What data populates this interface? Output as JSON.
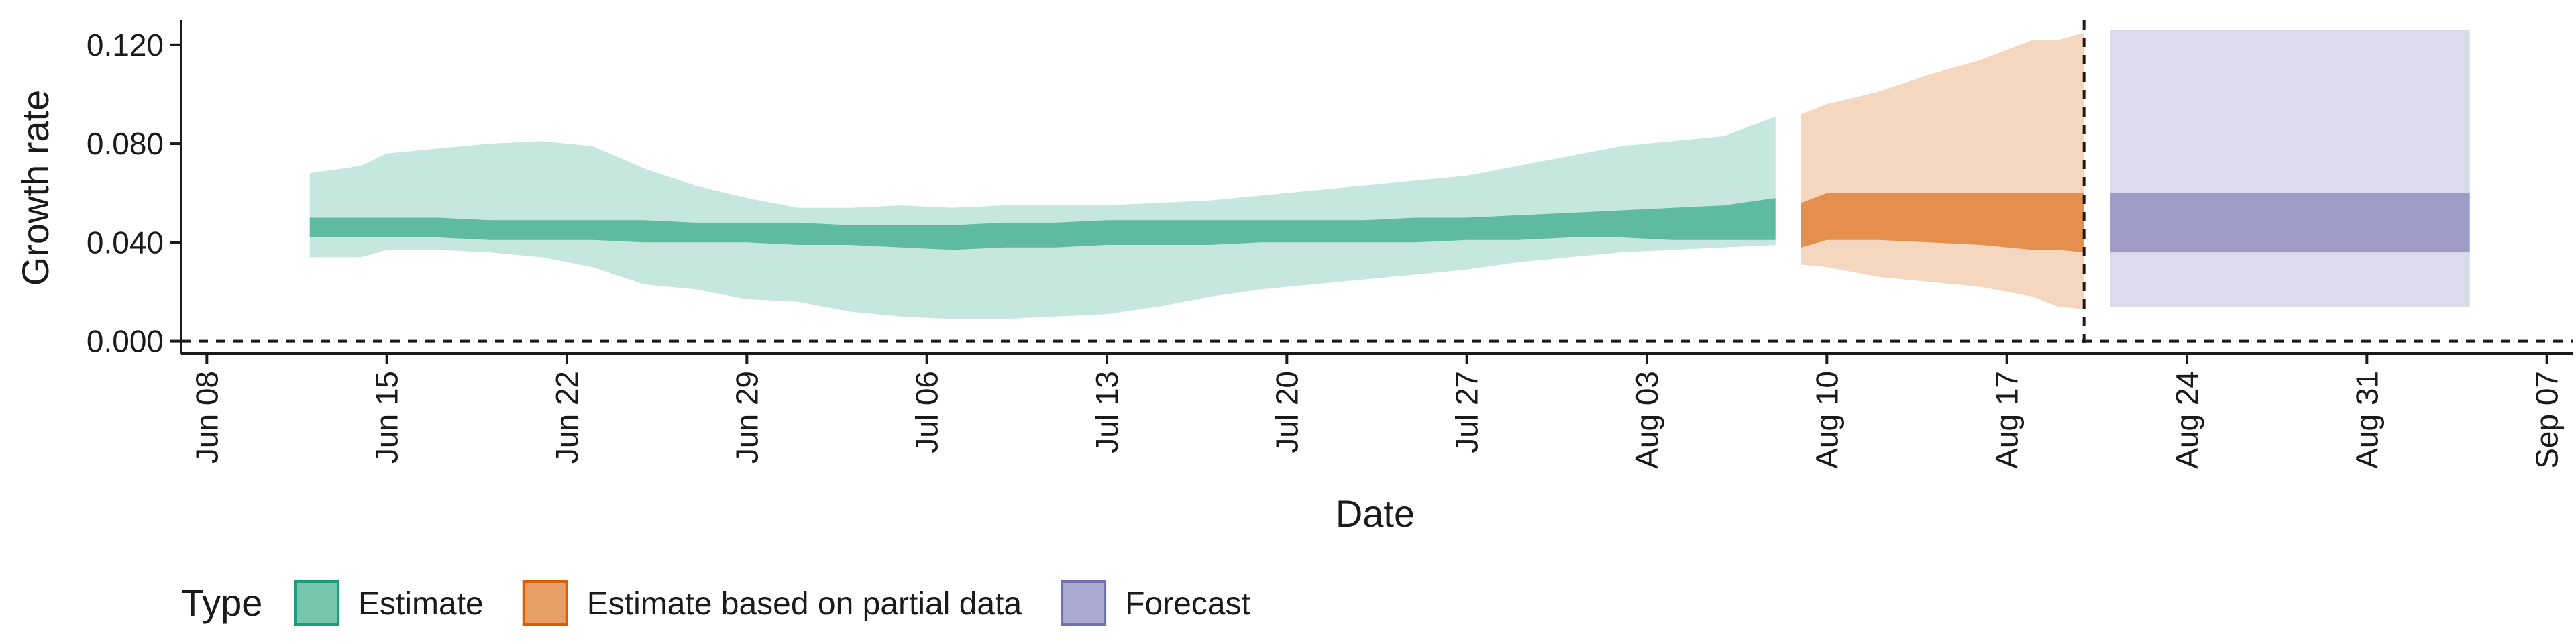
{
  "chart_data": {
    "type": "area",
    "title": "",
    "xlabel": "Date",
    "ylabel": "Growth rate",
    "x_type": "date",
    "xlim": [
      "2020-06-07",
      "2020-09-08"
    ],
    "ylim": [
      -0.005,
      0.13
    ],
    "x_ticks": [
      {
        "date": "2020-06-08",
        "label": "Jun 08"
      },
      {
        "date": "2020-06-15",
        "label": "Jun 15"
      },
      {
        "date": "2020-06-22",
        "label": "Jun 22"
      },
      {
        "date": "2020-06-29",
        "label": "Jun 29"
      },
      {
        "date": "2020-07-06",
        "label": "Jul 06"
      },
      {
        "date": "2020-07-13",
        "label": "Jul 13"
      },
      {
        "date": "2020-07-20",
        "label": "Jul 20"
      },
      {
        "date": "2020-07-27",
        "label": "Jul 27"
      },
      {
        "date": "2020-08-03",
        "label": "Aug 03"
      },
      {
        "date": "2020-08-10",
        "label": "Aug 10"
      },
      {
        "date": "2020-08-17",
        "label": "Aug 17"
      },
      {
        "date": "2020-08-24",
        "label": "Aug 24"
      },
      {
        "date": "2020-08-31",
        "label": "Aug 31"
      },
      {
        "date": "2020-09-07",
        "label": "Sep 07"
      }
    ],
    "y_ticks": [
      {
        "value": 0.0,
        "label": "0.000"
      },
      {
        "value": 0.04,
        "label": "0.040"
      },
      {
        "value": 0.08,
        "label": "0.080"
      },
      {
        "value": 0.12,
        "label": "0.120"
      }
    ],
    "reference_lines": [
      {
        "axis": "y",
        "value": 0.0,
        "style": "dashed"
      },
      {
        "axis": "x",
        "value": "2020-08-20",
        "style": "dashed"
      }
    ],
    "grid": false,
    "legend": {
      "title": "Type",
      "position": "bottom-left"
    },
    "series": [
      {
        "name": "Estimate",
        "color": "#1b9e77",
        "x": [
          "2020-06-12",
          "2020-06-14",
          "2020-06-15",
          "2020-06-17",
          "2020-06-19",
          "2020-06-21",
          "2020-06-23",
          "2020-06-25",
          "2020-06-27",
          "2020-06-29",
          "2020-07-01",
          "2020-07-03",
          "2020-07-05",
          "2020-07-07",
          "2020-07-09",
          "2020-07-11",
          "2020-07-13",
          "2020-07-15",
          "2020-07-17",
          "2020-07-19",
          "2020-07-21",
          "2020-07-23",
          "2020-07-25",
          "2020-07-27",
          "2020-07-29",
          "2020-07-31",
          "2020-08-02",
          "2020-08-04",
          "2020-08-06",
          "2020-08-08"
        ],
        "outer_lower": [
          0.034,
          0.034,
          0.037,
          0.037,
          0.036,
          0.034,
          0.03,
          0.023,
          0.021,
          0.017,
          0.016,
          0.012,
          0.01,
          0.009,
          0.009,
          0.01,
          0.011,
          0.014,
          0.018,
          0.021,
          0.023,
          0.025,
          0.027,
          0.029,
          0.032,
          0.034,
          0.036,
          0.037,
          0.038,
          0.039
        ],
        "inner_lower": [
          0.042,
          0.042,
          0.042,
          0.042,
          0.041,
          0.041,
          0.041,
          0.04,
          0.04,
          0.04,
          0.039,
          0.039,
          0.038,
          0.037,
          0.038,
          0.038,
          0.039,
          0.039,
          0.039,
          0.04,
          0.04,
          0.04,
          0.04,
          0.041,
          0.041,
          0.042,
          0.042,
          0.041,
          0.041,
          0.041
        ],
        "inner_upper": [
          0.05,
          0.05,
          0.05,
          0.05,
          0.049,
          0.049,
          0.049,
          0.049,
          0.048,
          0.048,
          0.048,
          0.047,
          0.047,
          0.047,
          0.048,
          0.048,
          0.049,
          0.049,
          0.049,
          0.049,
          0.049,
          0.049,
          0.05,
          0.05,
          0.051,
          0.052,
          0.053,
          0.054,
          0.055,
          0.058
        ],
        "outer_upper": [
          0.068,
          0.071,
          0.076,
          0.078,
          0.08,
          0.081,
          0.079,
          0.07,
          0.063,
          0.058,
          0.054,
          0.054,
          0.055,
          0.054,
          0.055,
          0.055,
          0.055,
          0.056,
          0.057,
          0.059,
          0.061,
          0.063,
          0.065,
          0.067,
          0.071,
          0.075,
          0.079,
          0.081,
          0.083,
          0.091
        ]
      },
      {
        "name": "Estimate based on partial data",
        "color": "#d95f02",
        "x": [
          "2020-08-09",
          "2020-08-10",
          "2020-08-12",
          "2020-08-14",
          "2020-08-16",
          "2020-08-18",
          "2020-08-19",
          "2020-08-20"
        ],
        "outer_lower": [
          0.031,
          0.03,
          0.026,
          0.024,
          0.022,
          0.018,
          0.014,
          0.013
        ],
        "inner_lower": [
          0.038,
          0.041,
          0.041,
          0.04,
          0.039,
          0.037,
          0.037,
          0.036
        ],
        "inner_upper": [
          0.056,
          0.06,
          0.06,
          0.06,
          0.06,
          0.06,
          0.06,
          0.06
        ],
        "outer_upper": [
          0.092,
          0.096,
          0.101,
          0.108,
          0.114,
          0.122,
          0.122,
          0.125
        ]
      },
      {
        "name": "Forecast",
        "color": "#7570b3",
        "x": [
          "2020-08-21",
          "2020-09-04"
        ],
        "outer_lower": [
          0.014,
          0.014
        ],
        "inner_lower": [
          0.036,
          0.036
        ],
        "inner_upper": [
          0.06,
          0.06
        ],
        "outer_upper": [
          0.126,
          0.126
        ]
      }
    ]
  }
}
